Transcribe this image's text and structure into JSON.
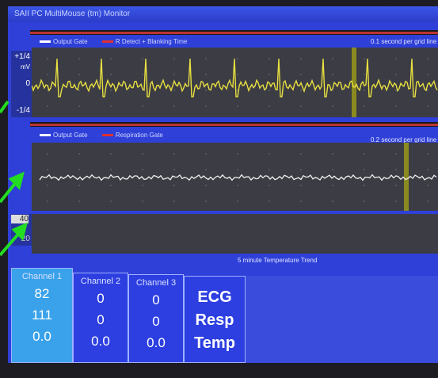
{
  "window": {
    "title": "SAII PC MultiMouse (tm) Monitor"
  },
  "ecg_panel": {
    "legend": [
      "Output Gate",
      "R Detect + Blanking Time"
    ],
    "scale": "0.1 second per grid line",
    "y_labels": [
      "+1/4",
      "mV",
      "0",
      "-1/4"
    ]
  },
  "resp_panel": {
    "legend": [
      "Output Gate",
      "Respiration Gate"
    ],
    "scale": "0.2 second per grid line"
  },
  "temp_panel": {
    "y_labels": [
      "40",
      "20"
    ],
    "caption": "5 minute Temperature Trend"
  },
  "channels": [
    {
      "name": "Channel 1",
      "values": [
        "82",
        "111",
        "0.0"
      ]
    },
    {
      "name": "Channel 2",
      "values": [
        "0",
        "0",
        "0.0"
      ]
    },
    {
      "name": "Channel 3",
      "values": [
        "0",
        "0",
        "0.0"
      ]
    }
  ],
  "signal_labels": [
    "ECG",
    "Resp",
    "Temp"
  ]
}
